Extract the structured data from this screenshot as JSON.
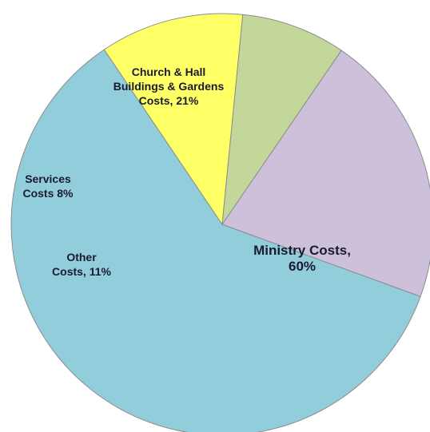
{
  "chart_data": {
    "type": "pie",
    "slices": [
      {
        "name": "Ministry Costs",
        "value": 60,
        "color": "#92cddc",
        "label_lines": [
          "Ministry  Costs,",
          "60%"
        ]
      },
      {
        "name": "Other Costs",
        "value": 11,
        "color": "#ffff66",
        "label_lines": [
          "Other",
          "Costs, 11%"
        ]
      },
      {
        "name": "Services Costs",
        "value": 8,
        "color": "#c4d79b",
        "label_lines": [
          "Services",
          "Costs 8%"
        ]
      },
      {
        "name": "Church & Hall Buildings & Gardens Costs",
        "value": 21,
        "color": "#ccc0da",
        "label_lines": [
          "Church & Hall",
          "Buildings & Gardens",
          "Costs, 21%"
        ]
      }
    ],
    "title": "",
    "legend": "none"
  }
}
